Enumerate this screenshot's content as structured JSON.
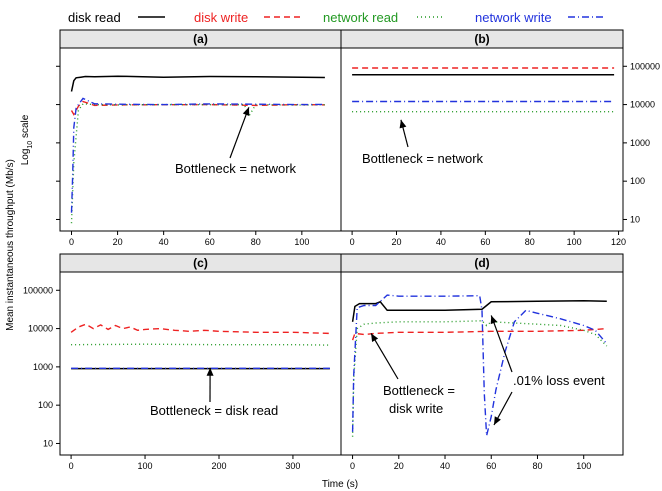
{
  "legend": [
    {
      "key": "disk_read",
      "label": "disk read",
      "color": "#000000",
      "dash": ""
    },
    {
      "key": "disk_write",
      "label": "disk write",
      "color": "#ee2222",
      "dash": "6,4"
    },
    {
      "key": "network_read",
      "label": "network read",
      "color": "#229922",
      "dash": "1,3"
    },
    {
      "key": "network_write",
      "label": "network write",
      "color": "#2233dd",
      "dash": "7,3,1,3"
    }
  ],
  "ylabel": "Mean instantaneous throughput (Mb/s)",
  "ylabel2_main": "Log",
  "ylabel2_sub": "10",
  "ylabel2_tail": " scale",
  "xlabel": "Time (s)",
  "chart_data": [
    {
      "panel": "(a)",
      "type": "line",
      "yscale": "log10",
      "ylim": [
        5,
        300000
      ],
      "xlim": [
        -5,
        117
      ],
      "xticks": [
        0,
        20,
        40,
        60,
        80,
        100
      ],
      "annotations": [
        {
          "text": "Bottleneck = network",
          "target": [
            77,
            8500
          ]
        }
      ],
      "series": [
        {
          "key": "disk_read",
          "x": [
            0,
            1,
            2,
            4,
            6,
            10,
            20,
            40,
            60,
            80,
            100,
            110
          ],
          "y": [
            22000,
            42000,
            50000,
            52000,
            54000,
            53000,
            55000,
            52000,
            54000,
            53000,
            52000,
            51000
          ]
        },
        {
          "key": "disk_write",
          "x": [
            0,
            1,
            3,
            5,
            10,
            20,
            40,
            60,
            80,
            100,
            110
          ],
          "y": [
            7000,
            5500,
            9000,
            12000,
            9500,
            9800,
            9900,
            10000,
            9500,
            10000,
            9800
          ]
        },
        {
          "key": "network_read",
          "x": [
            0,
            1,
            3,
            5,
            10,
            20,
            40,
            60,
            75,
            77,
            80,
            100,
            110
          ],
          "y": [
            8,
            300,
            7000,
            10500,
            10000,
            9800,
            10000,
            9900,
            10000,
            5000,
            10000,
            9700,
            9900
          ]
        },
        {
          "key": "network_write",
          "x": [
            0,
            0.5,
            1,
            2,
            3,
            5,
            10,
            20,
            40,
            60,
            80,
            100,
            110
          ],
          "y": [
            15,
            150,
            2500,
            8000,
            10000,
            14500,
            10500,
            10200,
            10000,
            10400,
            10200,
            10000,
            10100
          ]
        }
      ]
    },
    {
      "panel": "(b)",
      "type": "line",
      "yscale": "log10",
      "ylim": [
        5,
        300000
      ],
      "xlim": [
        -5,
        122
      ],
      "xticks": [
        0,
        20,
        40,
        60,
        80,
        100,
        120
      ],
      "yticks": [
        "100000",
        "10000",
        "1000",
        "100",
        "10"
      ],
      "annotations": [
        {
          "text": "Bottleneck = network",
          "target": [
            22,
            4000
          ]
        }
      ],
      "series": [
        {
          "key": "disk_read",
          "x": [
            0,
            20,
            40,
            60,
            80,
            100,
            118
          ],
          "y": [
            60000,
            60000,
            60000,
            60000,
            60000,
            60000,
            60000
          ]
        },
        {
          "key": "disk_write",
          "x": [
            0,
            20,
            40,
            60,
            80,
            100,
            118
          ],
          "y": [
            90000,
            90000,
            90000,
            90000,
            90000,
            90000,
            90000
          ]
        },
        {
          "key": "network_read",
          "x": [
            0,
            20,
            40,
            60,
            80,
            100,
            118
          ],
          "y": [
            6500,
            6500,
            6500,
            6500,
            6500,
            6500,
            6500
          ]
        },
        {
          "key": "network_write",
          "x": [
            0,
            20,
            40,
            60,
            80,
            100,
            118
          ],
          "y": [
            12000,
            12000,
            12000,
            12000,
            12000,
            12000,
            12000
          ]
        }
      ]
    },
    {
      "panel": "(c)",
      "type": "line",
      "yscale": "log10",
      "ylim": [
        5,
        300000
      ],
      "xlim": [
        -15,
        365
      ],
      "xticks": [
        0,
        100,
        200,
        300
      ],
      "yticks": [
        "100000",
        "10000",
        "1000",
        "100",
        "10"
      ],
      "annotations": [
        {
          "text": "Bottleneck = disk read",
          "target": [
            188,
            950
          ]
        }
      ],
      "series": [
        {
          "key": "disk_read",
          "x": [
            0,
            100,
            200,
            300,
            350
          ],
          "y": [
            900,
            900,
            900,
            900,
            900
          ]
        },
        {
          "key": "disk_write",
          "x": [
            0,
            10,
            20,
            30,
            40,
            50,
            60,
            70,
            80,
            90,
            100,
            120,
            140,
            160,
            180,
            200,
            250,
            300,
            350
          ],
          "y": [
            8000,
            11000,
            13000,
            10000,
            12500,
            9500,
            12000,
            10000,
            11000,
            9000,
            9500,
            10000,
            9000,
            8500,
            9000,
            8500,
            8000,
            8000,
            7500
          ]
        },
        {
          "key": "network_read",
          "x": [
            0,
            100,
            200,
            300,
            350
          ],
          "y": [
            3800,
            3900,
            3800,
            3800,
            3700
          ]
        },
        {
          "key": "network_write",
          "x": [
            0,
            100,
            200,
            300,
            350
          ],
          "y": [
            920,
            920,
            920,
            920,
            920
          ]
        }
      ]
    },
    {
      "panel": "(d)",
      "type": "line",
      "yscale": "log10",
      "ylim": [
        5,
        300000
      ],
      "xlim": [
        -5,
        117
      ],
      "xticks": [
        0,
        20,
        40,
        60,
        80,
        100
      ],
      "annotations": [
        {
          "text": "Bottleneck =",
          "target": [
            8,
            7500
          ]
        },
        {
          "text": "disk write",
          "target": null
        },
        {
          "text": ".01% loss event",
          "target": [
            60,
            22000
          ]
        }
      ],
      "series": [
        {
          "key": "disk_read",
          "x": [
            0,
            1,
            3,
            10,
            12,
            15,
            20,
            40,
            56,
            58,
            60,
            80,
            100,
            110
          ],
          "y": [
            15000,
            38000,
            45000,
            45000,
            50000,
            30000,
            30000,
            30000,
            32000,
            40000,
            50000,
            52000,
            53000,
            52000
          ]
        },
        {
          "key": "disk_write",
          "x": [
            0,
            1,
            5,
            10,
            20,
            40,
            60,
            80,
            100,
            110
          ],
          "y": [
            5000,
            7500,
            7000,
            7500,
            8000,
            8000,
            8500,
            8500,
            9000,
            10000
          ]
        },
        {
          "key": "network_read",
          "x": [
            0,
            0.5,
            2,
            5,
            10,
            20,
            40,
            56,
            58,
            60,
            70,
            80,
            90,
            100,
            105,
            110
          ],
          "y": [
            15,
            500,
            10000,
            13000,
            14000,
            15000,
            15000,
            16000,
            12000,
            15000,
            14000,
            13000,
            12000,
            9000,
            7000,
            3500
          ]
        },
        {
          "key": "network_write",
          "x": [
            0,
            0.5,
            2,
            5,
            10,
            15,
            20,
            40,
            55,
            56,
            57,
            58,
            60,
            62,
            66,
            70,
            75,
            80,
            90,
            100,
            105,
            110
          ],
          "y": [
            20,
            600,
            35000,
            40000,
            40000,
            75000,
            70000,
            70000,
            72000,
            30000,
            200,
            16,
            50,
            250,
            2500,
            15000,
            30000,
            25000,
            18000,
            12000,
            9000,
            4000
          ]
        }
      ]
    }
  ]
}
